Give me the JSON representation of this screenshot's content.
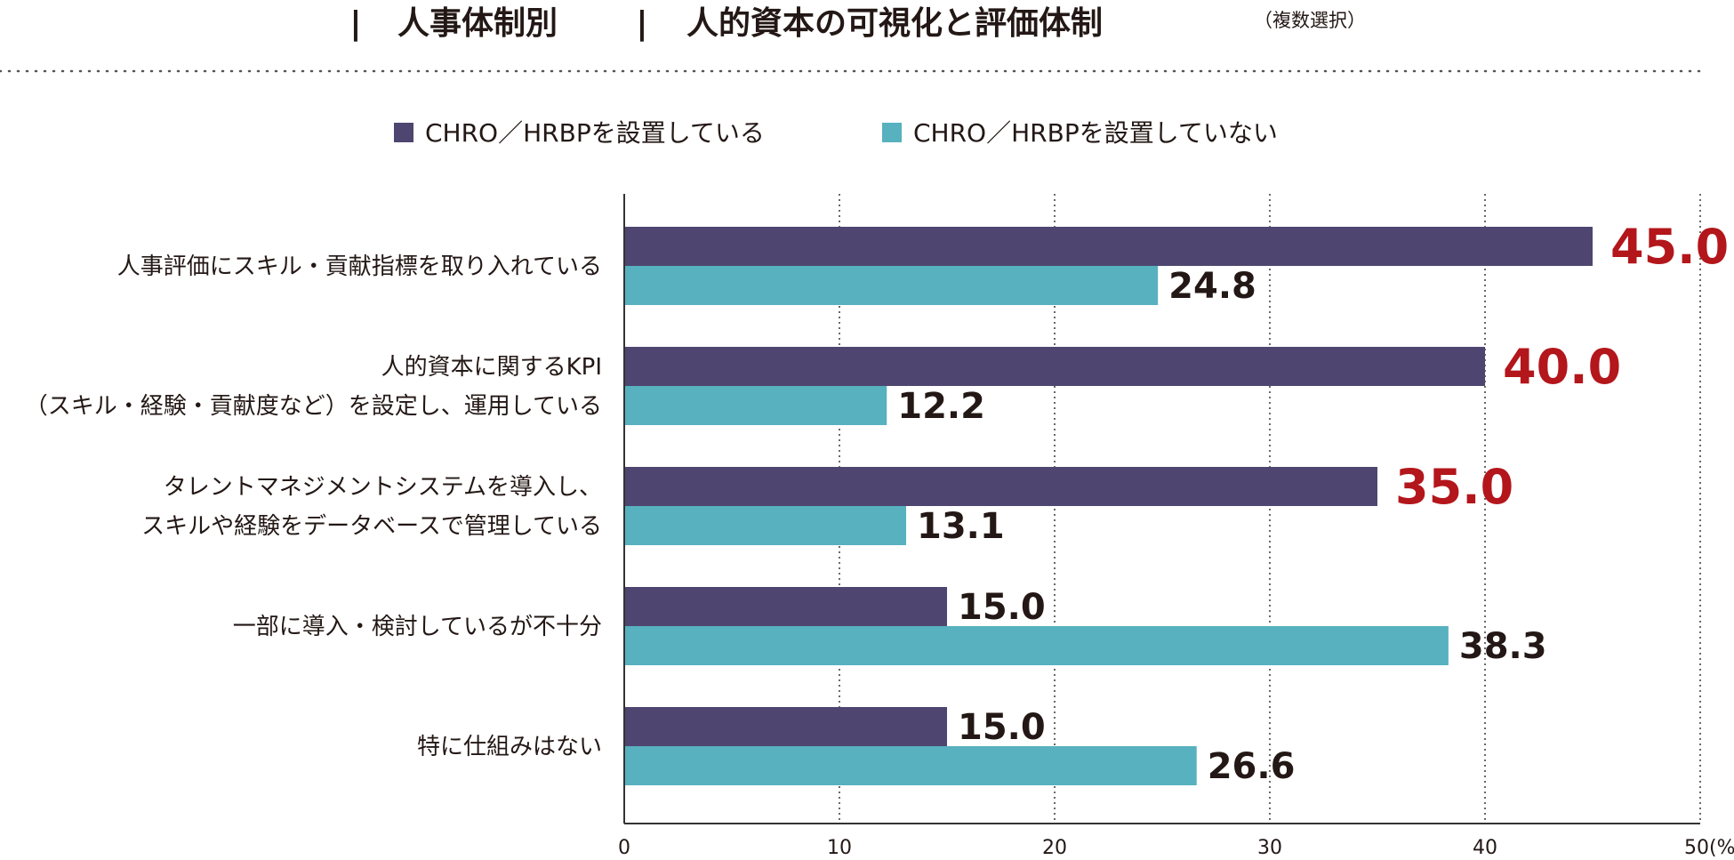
{
  "header": {
    "bar_left": "|",
    "section": "人事体制別",
    "bar_mid": "|",
    "title": "人的資本の可視化と評価体制",
    "note": "（複数選択）"
  },
  "colors": {
    "series1": "#4e4670",
    "series2": "#57b1bf",
    "highlight_label": "#b3161b",
    "label": "#231815",
    "axis": "#333333",
    "grid": "#444444",
    "dots": "#555555"
  },
  "chart_data": {
    "type": "bar",
    "orientation": "horizontal",
    "categories": [
      [
        "人事評価にスキル・貢献指標を取り入れている"
      ],
      [
        "人的資本に関するKPI",
        "（スキル・経験・貢献度など）を設定し、運用している"
      ],
      [
        "タレントマネジメントシステムを導入し、",
        "スキルや経験をデータベースで管理している"
      ],
      [
        "一部に導入・検討しているが不十分"
      ],
      [
        "特に仕組みはない"
      ]
    ],
    "series": [
      {
        "name": "CHRO／HRBPを設置している",
        "values": [
          45.0,
          40.0,
          35.0,
          15.0,
          15.0
        ],
        "labels": [
          "45.0",
          "40.0",
          "35.0",
          "15.0",
          "15.0"
        ],
        "highlight": [
          true,
          true,
          true,
          false,
          false
        ]
      },
      {
        "name": "CHRO／HRBPを設置していない",
        "values": [
          24.8,
          12.2,
          13.1,
          38.3,
          26.6
        ],
        "labels": [
          "24.8",
          "12.2",
          "13.1",
          "38.3",
          "26.6"
        ],
        "highlight": [
          false,
          false,
          false,
          false,
          false
        ]
      }
    ],
    "xlim": [
      0,
      50
    ],
    "xticks": [
      0,
      10,
      20,
      30,
      40,
      50
    ],
    "xtick_labels": [
      "0",
      "10",
      "20",
      "30",
      "40",
      "50"
    ],
    "unit": "(%)",
    "grid": "vertical dotted",
    "legend": "top-center"
  }
}
